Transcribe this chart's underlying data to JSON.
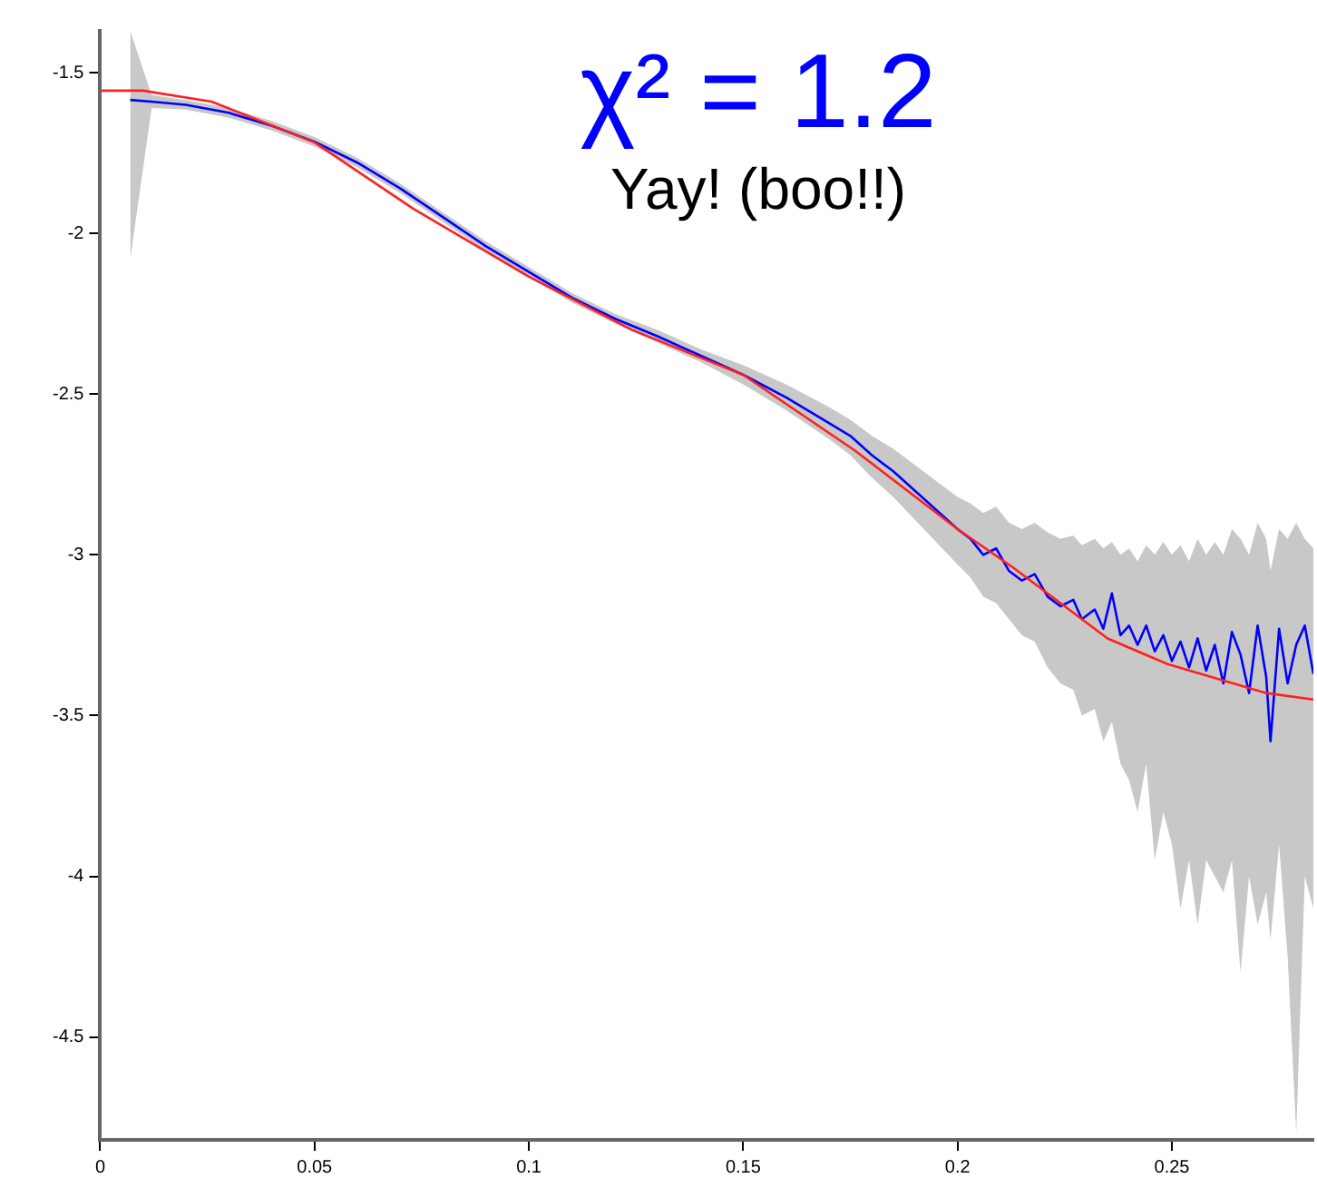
{
  "chart_data": {
    "type": "line",
    "title": "χ² = 1.2",
    "subtitle": "Yay! (boo!!)",
    "xlim": [
      0,
      0.283
    ],
    "xticks": [
      0,
      0.05,
      0.1,
      0.15,
      0.2,
      0.25
    ],
    "ylim": [
      -4.82,
      -1.37
    ],
    "yticks": [
      -1.5,
      -2,
      -2.5,
      -3,
      -3.5,
      -4,
      -4.5
    ],
    "grid": false,
    "legend": false,
    "marker": "none",
    "series": [
      {
        "color": "#0000ff",
        "x": [
          0.007,
          0.012,
          0.02,
          0.03,
          0.04,
          0.05,
          0.06,
          0.07,
          0.08,
          0.09,
          0.1,
          0.11,
          0.12,
          0.13,
          0.14,
          0.15,
          0.16,
          0.17,
          0.175,
          0.18,
          0.185,
          0.19,
          0.195,
          0.2,
          0.203,
          0.206,
          0.209,
          0.212,
          0.215,
          0.218,
          0.221,
          0.224,
          0.227,
          0.229,
          0.232,
          0.234,
          0.236,
          0.238,
          0.24,
          0.242,
          0.244,
          0.246,
          0.248,
          0.25,
          0.252,
          0.254,
          0.256,
          0.258,
          0.26,
          0.262,
          0.264,
          0.266,
          0.268,
          0.27,
          0.272,
          0.273,
          0.275,
          0.277,
          0.279,
          0.281,
          0.283
        ],
        "values": [
          -1.585,
          -1.59,
          -1.6,
          -1.625,
          -1.665,
          -1.715,
          -1.78,
          -1.86,
          -1.95,
          -2.04,
          -2.12,
          -2.2,
          -2.265,
          -2.32,
          -2.38,
          -2.44,
          -2.51,
          -2.59,
          -2.63,
          -2.69,
          -2.74,
          -2.8,
          -2.86,
          -2.92,
          -2.95,
          -3.0,
          -2.98,
          -3.05,
          -3.08,
          -3.06,
          -3.13,
          -3.16,
          -3.14,
          -3.2,
          -3.17,
          -3.23,
          -3.12,
          -3.25,
          -3.22,
          -3.28,
          -3.22,
          -3.3,
          -3.25,
          -3.33,
          -3.27,
          -3.35,
          -3.26,
          -3.36,
          -3.28,
          -3.4,
          -3.24,
          -3.31,
          -3.43,
          -3.22,
          -3.38,
          -3.58,
          -3.23,
          -3.4,
          -3.28,
          -3.22,
          -3.37
        ],
        "lower": [
          -2.08,
          -1.61,
          -1.615,
          -1.64,
          -1.68,
          -1.73,
          -1.795,
          -1.875,
          -1.965,
          -2.055,
          -2.135,
          -2.215,
          -2.28,
          -2.34,
          -2.4,
          -2.47,
          -2.55,
          -2.64,
          -2.69,
          -2.76,
          -2.82,
          -2.89,
          -2.96,
          -3.03,
          -3.07,
          -3.13,
          -3.15,
          -3.2,
          -3.25,
          -3.27,
          -3.35,
          -3.4,
          -3.42,
          -3.5,
          -3.48,
          -3.58,
          -3.52,
          -3.65,
          -3.7,
          -3.8,
          -3.65,
          -3.95,
          -3.8,
          -3.9,
          -4.1,
          -3.95,
          -4.15,
          -3.95,
          -4.0,
          -4.05,
          -3.95,
          -4.3,
          -4.0,
          -4.15,
          -4.05,
          -4.2,
          -3.9,
          -4.25,
          -4.8,
          -4.0,
          -4.1
        ],
        "upper": [
          -1.37,
          -1.57,
          -1.585,
          -1.61,
          -1.65,
          -1.7,
          -1.765,
          -1.845,
          -1.935,
          -2.025,
          -2.105,
          -2.185,
          -2.25,
          -2.3,
          -2.36,
          -2.41,
          -2.47,
          -2.54,
          -2.58,
          -2.63,
          -2.67,
          -2.72,
          -2.77,
          -2.82,
          -2.84,
          -2.87,
          -2.85,
          -2.9,
          -2.92,
          -2.9,
          -2.93,
          -2.95,
          -2.94,
          -2.97,
          -2.95,
          -2.98,
          -2.96,
          -3.0,
          -2.98,
          -3.02,
          -2.97,
          -3.0,
          -2.96,
          -3.0,
          -2.97,
          -3.02,
          -2.95,
          -3.0,
          -2.96,
          -3.0,
          -2.92,
          -2.95,
          -3.0,
          -2.9,
          -2.95,
          -3.05,
          -2.92,
          -2.95,
          -2.9,
          -2.95,
          -2.98
        ]
      },
      {
        "color": "#ff2020",
        "x": [
          0,
          0.01,
          0.026,
          0.05,
          0.073,
          0.1,
          0.124,
          0.15,
          0.176,
          0.2,
          0.213,
          0.235,
          0.249,
          0.272,
          0.283
        ],
        "values": [
          -1.556,
          -1.556,
          -1.59,
          -1.717,
          -1.923,
          -2.135,
          -2.3,
          -2.44,
          -2.675,
          -2.92,
          -3.04,
          -3.26,
          -3.34,
          -3.43,
          -3.45
        ]
      }
    ]
  }
}
